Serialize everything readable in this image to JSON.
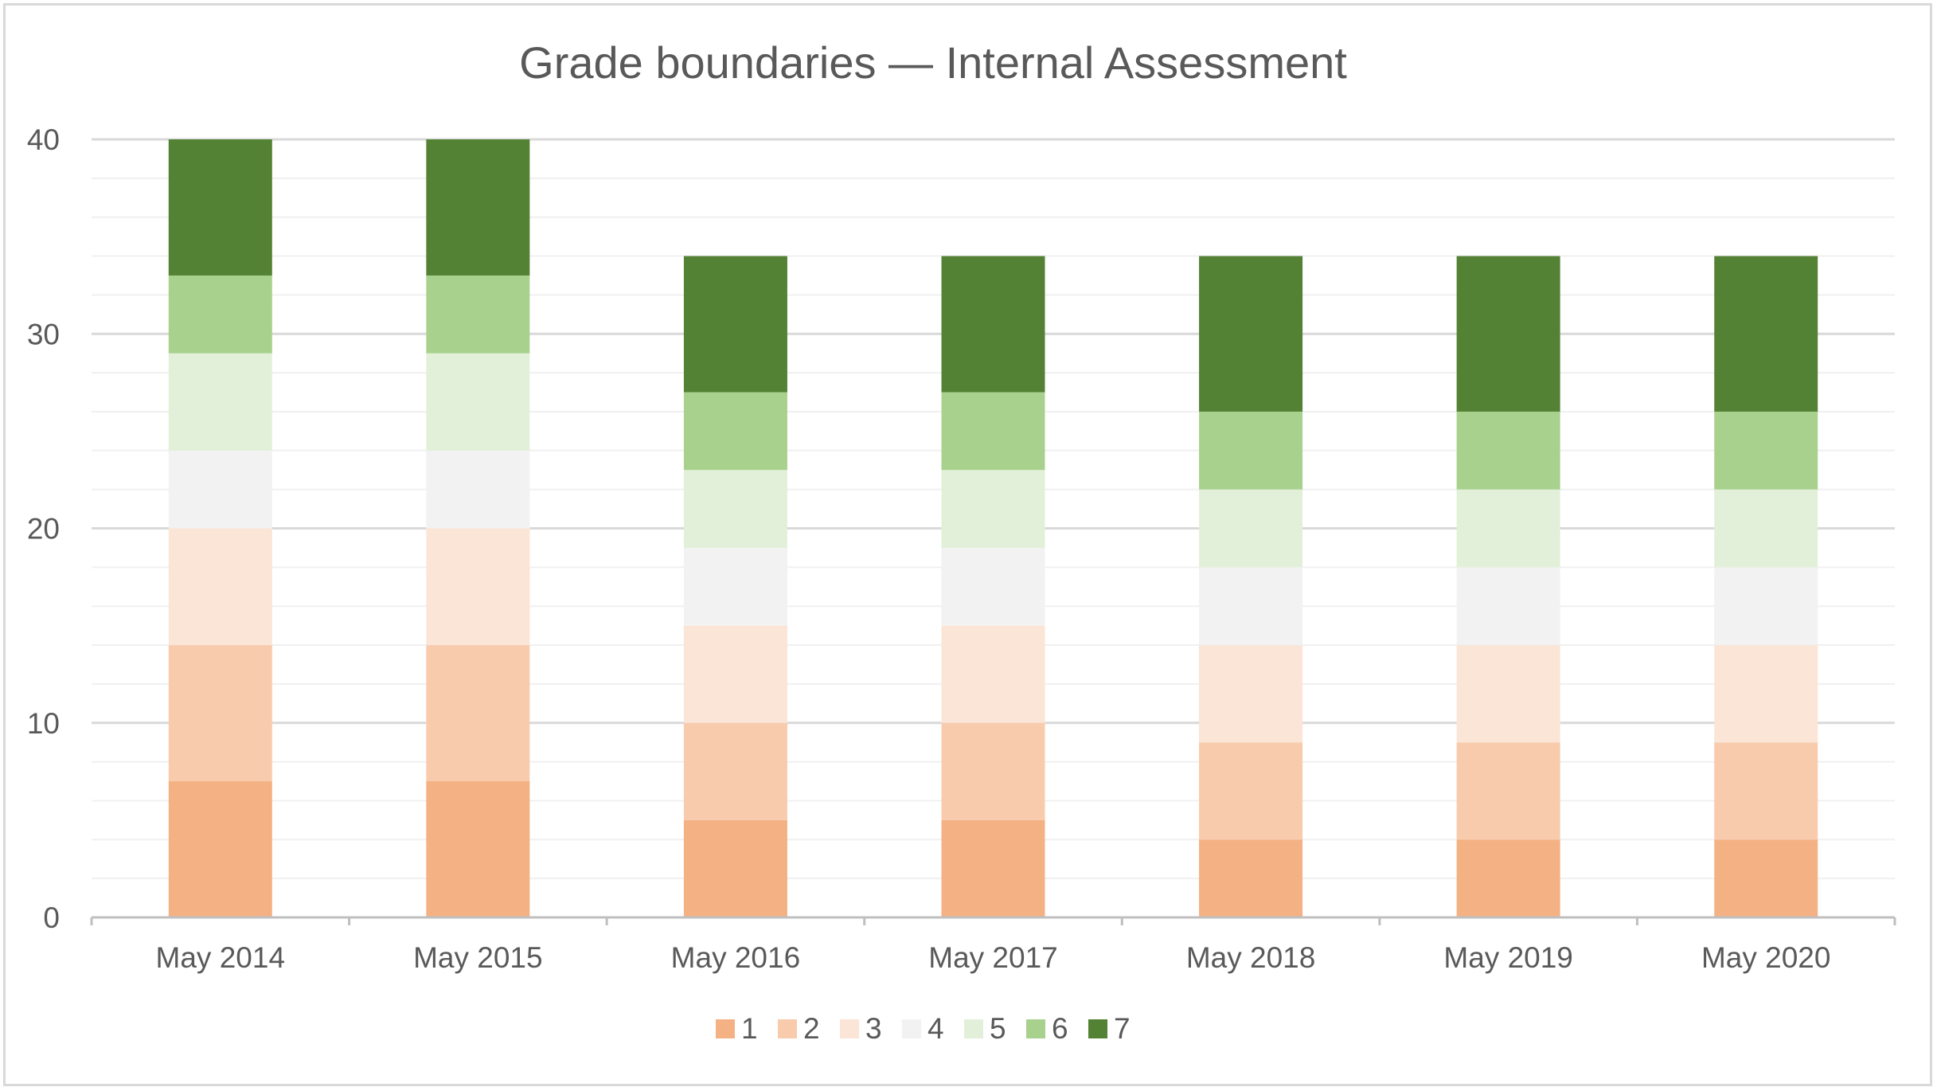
{
  "chart_data": {
    "type": "bar",
    "stacked": true,
    "title": "Grade boundaries — Internal Assessment",
    "xlabel": "",
    "ylabel": "",
    "ylim": [
      0,
      40
    ],
    "yticks": [
      "0",
      "10",
      "20",
      "30",
      "40"
    ],
    "minor_gridline_step": 2,
    "grid": true,
    "legend_position": "bottom",
    "categories": [
      "May 2014",
      "May 2015",
      "May 2016",
      "May 2017",
      "May 2018",
      "May 2019",
      "May 2020"
    ],
    "series": [
      {
        "name": "1",
        "color": "#f4b183",
        "values": [
          7,
          7,
          5,
          5,
          4,
          4,
          4
        ]
      },
      {
        "name": "2",
        "color": "#f8cbad",
        "values": [
          7,
          7,
          5,
          5,
          5,
          5,
          5
        ]
      },
      {
        "name": "3",
        "color": "#fbe5d6",
        "values": [
          6,
          6,
          5,
          5,
          5,
          5,
          5
        ]
      },
      {
        "name": "4",
        "color": "#f2f2f2",
        "values": [
          4,
          4,
          4,
          4,
          4,
          4,
          4
        ]
      },
      {
        "name": "5",
        "color": "#e2f0d9",
        "values": [
          5,
          5,
          4,
          4,
          4,
          4,
          4
        ]
      },
      {
        "name": "6",
        "color": "#a9d18e",
        "values": [
          4,
          4,
          4,
          4,
          4,
          4,
          4
        ]
      },
      {
        "name": "7",
        "color": "#548235",
        "values": [
          7,
          7,
          7,
          7,
          8,
          8,
          8
        ]
      }
    ]
  }
}
